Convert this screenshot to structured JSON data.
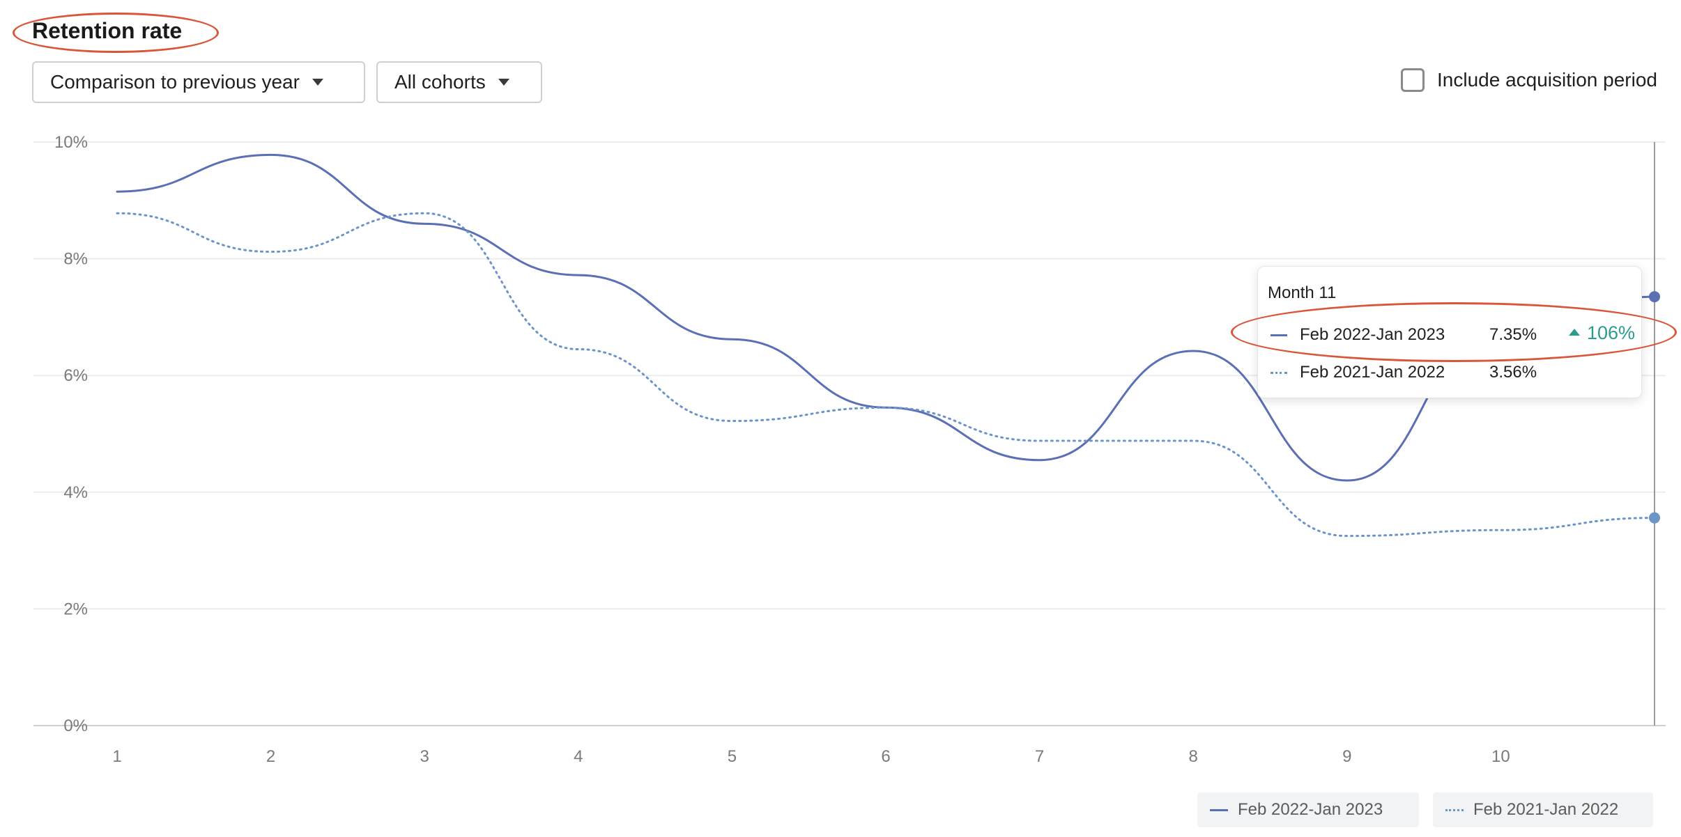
{
  "header": {
    "title": "Retention rate",
    "comparison_dropdown": "Comparison to previous year",
    "cohort_dropdown": "All cohorts",
    "checkbox_label": "Include acquisition period"
  },
  "tooltip": {
    "title": "Month 11",
    "rows": [
      {
        "name": "Feb 2022-Jan 2023",
        "value": "7.35%",
        "change": "106%"
      },
      {
        "name": "Feb 2021-Jan 2022",
        "value": "3.56%"
      }
    ]
  },
  "legend": [
    "Feb 2022-Jan 2023",
    "Feb 2021-Jan 2022"
  ],
  "colors": {
    "series_current": "#5b6fb5",
    "series_previous": "#6b95c9",
    "increase": "#2a9d8f",
    "annotation": "#d9563a"
  },
  "chart_data": {
    "type": "line",
    "x": [
      1,
      2,
      3,
      4,
      5,
      6,
      7,
      8,
      9,
      10,
      11
    ],
    "x_tick_labels": [
      "1",
      "2",
      "3",
      "4",
      "5",
      "6",
      "7",
      "8",
      "9",
      "10",
      ""
    ],
    "y_tick_labels": [
      "0%",
      "2%",
      "4%",
      "6%",
      "8%",
      "10%"
    ],
    "y_ticks": [
      0,
      2,
      4,
      6,
      8,
      10
    ],
    "ylim": [
      0,
      10
    ],
    "xlim": [
      1,
      11
    ],
    "grid": true,
    "legend_position": "bottom-right",
    "series": [
      {
        "name": "Feb 2022-Jan 2023",
        "style": "solid",
        "values": [
          9.15,
          9.78,
          8.6,
          7.72,
          6.62,
          5.45,
          4.55,
          6.42,
          4.2,
          6.8,
          7.35
        ]
      },
      {
        "name": "Feb 2021-Jan 2022",
        "style": "dotted",
        "values": [
          8.78,
          8.12,
          8.78,
          6.45,
          5.22,
          5.45,
          4.88,
          4.88,
          3.25,
          3.35,
          3.56
        ]
      }
    ]
  }
}
